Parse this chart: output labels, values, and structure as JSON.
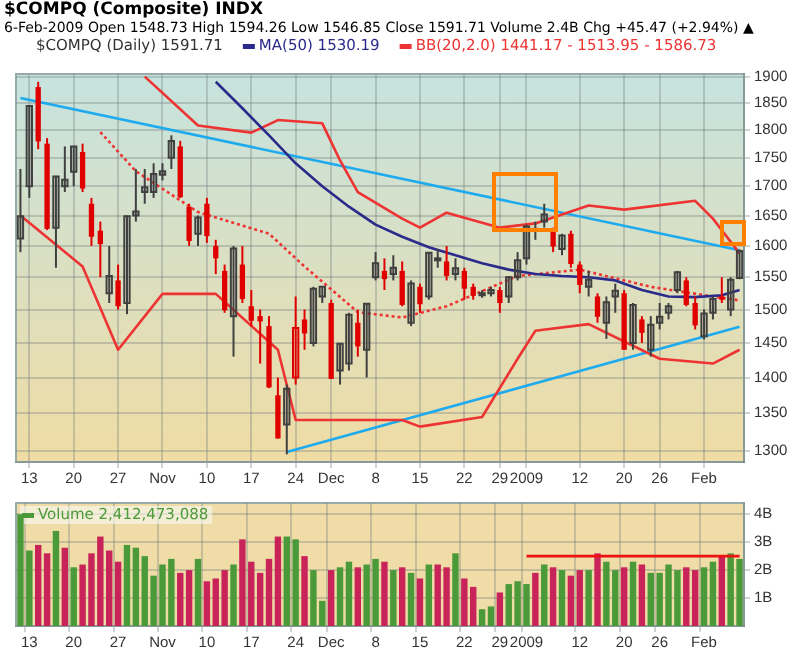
{
  "chart_data": [
    {
      "type": "candlestick",
      "title": "$COMPQ (Composite) INDX",
      "subtitle": "6-Feb-2009  Open 1548.73  High 1594.26  Low 1546.85  Close 1591.71  Volume 2.4B  Chg +45.47 (+2.94%) ▲",
      "categories": [
        null,
        "13",
        null,
        null,
        null,
        null,
        "20",
        null,
        null,
        null,
        null,
        "27",
        null,
        null,
        null,
        null,
        "Nov",
        null,
        null,
        null,
        null,
        "10",
        null,
        null,
        null,
        null,
        "17",
        null,
        null,
        null,
        null,
        "24",
        null,
        null,
        null,
        "Dec",
        null,
        null,
        null,
        null,
        "8",
        null,
        null,
        null,
        null,
        "15",
        null,
        null,
        null,
        null,
        "22",
        null,
        null,
        null,
        "29",
        null,
        null,
        "2009",
        null,
        null,
        null,
        null,
        null,
        "12",
        null,
        null,
        null,
        null,
        "20",
        null,
        null,
        null,
        "26",
        null,
        null,
        null,
        null,
        "Feb",
        null,
        null,
        null,
        null
      ],
      "log": true,
      "ylim": [
        1285,
        1905
      ],
      "yticks": [
        1300,
        1350,
        1400,
        1450,
        1500,
        1550,
        1600,
        1650,
        1700,
        1750,
        1800,
        1850,
        1900
      ],
      "grid": true,
      "legend": "top",
      "series": [
        {
          "name": "$COMPQ (Daily) 1591.71",
          "type": "candlestick",
          "colors": [
            "#404040",
            "#404040",
            "#e00000",
            "#e00000",
            "#404040",
            "#404040",
            "#404040",
            "#e00000",
            "#e00000",
            "#e00000",
            "#404040",
            "#e00000",
            "#404040",
            "#404040",
            "#404040",
            "#404040",
            "#404040",
            "#404040",
            "#e00000",
            "#e00000",
            "#404040",
            "#e00000",
            "#e00000",
            "#e00000",
            "#404040",
            "#e00000",
            "#e00000",
            "#e00000",
            "#e00000",
            "#e00000",
            "#404040",
            "#e00000",
            "#e00000",
            "#404040",
            "#404040",
            "#e00000",
            "#404040",
            "#404040",
            "#e00000",
            "#404040",
            "#404040",
            "#e00000",
            "#404040",
            "#e00000",
            "#404040",
            "#e00000",
            "#404040",
            "#404040",
            "#e00000",
            "#404040",
            "#e00000",
            "#e00000",
            "#404040",
            "#404040",
            "#e00000",
            "#404040",
            "#404040",
            "#404040",
            "#404040",
            "#404040",
            "#e00000",
            "#404040",
            "#e00000",
            "#e00000",
            "#404040",
            "#e00000",
            "#404040",
            "#404040",
            "#e00000",
            "#404040",
            "#e00000",
            "#404040",
            "#404040",
            "#404040",
            "#404040",
            "#e00000",
            "#e00000",
            "#404040",
            "#404040",
            "#e00000",
            "#404040",
            "#404040"
          ],
          "ohlc": [
            [
              1612,
              1730,
              1590,
              1649
            ],
            [
              1700,
              1844,
              1680,
              1844
            ],
            [
              1880,
              1890,
              1765,
              1779
            ],
            [
              1775,
              1785,
              1626,
              1628
            ],
            [
              1630,
              1718,
              1565,
              1717
            ],
            [
              1700,
              1770,
              1690,
              1711
            ],
            [
              1725,
              1771,
              1700,
              1770
            ],
            [
              1760,
              1775,
              1690,
              1696
            ],
            [
              1670,
              1680,
              1600,
              1615
            ],
            [
              1625,
              1640,
              1550,
              1603
            ],
            [
              1525,
              1600,
              1510,
              1552
            ],
            [
              1545,
              1570,
              1500,
              1505
            ],
            [
              1510,
              1650,
              1493,
              1649
            ],
            [
              1650,
              1730,
              1640,
              1657
            ],
            [
              1690,
              1730,
              1670,
              1698
            ],
            [
              1690,
              1740,
              1680,
              1721
            ],
            [
              1720,
              1740,
              1710,
              1726
            ],
            [
              1750,
              1790,
              1730,
              1780
            ],
            [
              1770,
              1780,
              1680,
              1681
            ],
            [
              1665,
              1670,
              1600,
              1608
            ],
            [
              1620,
              1650,
              1600,
              1647
            ],
            [
              1670,
              1680,
              1605,
              1616
            ],
            [
              1600,
              1610,
              1555,
              1580
            ],
            [
              1560,
              1570,
              1495,
              1499
            ],
            [
              1490,
              1600,
              1430,
              1596
            ],
            [
              1570,
              1600,
              1510,
              1516
            ],
            [
              1505,
              1530,
              1475,
              1483
            ],
            [
              1490,
              1500,
              1420,
              1482
            ],
            [
              1475,
              1490,
              1385,
              1386
            ],
            [
              1375,
              1400,
              1316,
              1316
            ],
            [
              1335,
              1390,
              1295,
              1384
            ],
            [
              1400,
              1520,
              1390,
              1472
            ],
            [
              1485,
              1500,
              1440,
              1464
            ],
            [
              1450,
              1535,
              1445,
              1532
            ],
            [
              1520,
              1535,
              1510,
              1535
            ],
            [
              1510,
              1515,
              1398,
              1398
            ],
            [
              1410,
              1450,
              1390,
              1449
            ],
            [
              1420,
              1495,
              1410,
              1492
            ],
            [
              1480,
              1500,
              1430,
              1445
            ],
            [
              1440,
              1510,
              1400,
              1509
            ],
            [
              1550,
              1590,
              1545,
              1572
            ],
            [
              1560,
              1580,
              1530,
              1547
            ],
            [
              1555,
              1585,
              1545,
              1565
            ],
            [
              1560,
              1575,
              1505,
              1507
            ],
            [
              1480,
              1545,
              1475,
              1540
            ],
            [
              1535,
              1540,
              1495,
              1508
            ],
            [
              1520,
              1590,
              1515,
              1589
            ],
            [
              1580,
              1595,
              1565,
              1580
            ],
            [
              1575,
              1600,
              1545,
              1552
            ],
            [
              1555,
              1580,
              1545,
              1564
            ],
            [
              1560,
              1565,
              1515,
              1532
            ],
            [
              1535,
              1540,
              1515,
              1521
            ],
            [
              1522,
              1530,
              1518,
              1525
            ],
            [
              1525,
              1535,
              1520,
              1530
            ],
            [
              1530,
              1535,
              1495,
              1510
            ],
            [
              1520,
              1552,
              1510,
              1550
            ],
            [
              1550,
              1590,
              1545,
              1577
            ],
            [
              1580,
              1635,
              1570,
              1632
            ],
            [
              1625,
              1640,
              1610,
              1628
            ],
            [
              1640,
              1670,
              1630,
              1652
            ],
            [
              1625,
              1630,
              1590,
              1599
            ],
            [
              1595,
              1620,
              1585,
              1617
            ],
            [
              1620,
              1625,
              1565,
              1571
            ],
            [
              1570,
              1575,
              1525,
              1538
            ],
            [
              1535,
              1560,
              1520,
              1546
            ],
            [
              1520,
              1525,
              1480,
              1489
            ],
            [
              1480,
              1520,
              1456,
              1511
            ],
            [
              1520,
              1540,
              1495,
              1529
            ],
            [
              1525,
              1530,
              1440,
              1440
            ],
            [
              1450,
              1510,
              1440,
              1507
            ],
            [
              1485,
              1490,
              1450,
              1465
            ],
            [
              1440,
              1490,
              1430,
              1477
            ],
            [
              1480,
              1510,
              1470,
              1489
            ],
            [
              1495,
              1510,
              1485,
              1505
            ],
            [
              1530,
              1560,
              1525,
              1558
            ],
            [
              1545,
              1550,
              1505,
              1507
            ],
            [
              1510,
              1520,
              1470,
              1476
            ],
            [
              1460,
              1500,
              1455,
              1494
            ],
            [
              1495,
              1520,
              1485,
              1516
            ],
            [
              1520,
              1550,
              1510,
              1515
            ],
            [
              1500,
              1550,
              1490,
              1546
            ],
            [
              1548.73,
              1594.26,
              1546.85,
              1591.71
            ]
          ]
        },
        {
          "name": "MA(50) 1530.19",
          "type": "line",
          "color": "#2a2a8a",
          "line_style": "solid",
          "values": [
            null,
            null,
            null,
            null,
            null,
            null,
            null,
            null,
            null,
            null,
            null,
            null,
            null,
            null,
            null,
            null,
            null,
            null,
            null,
            null,
            null,
            null,
            1890,
            null,
            null,
            1840,
            null,
            null,
            1790,
            null,
            null,
            1740,
            null,
            null,
            1700,
            null,
            null,
            1665,
            null,
            null,
            1635,
            null,
            null,
            1615,
            null,
            null,
            1598,
            null,
            null,
            1585,
            null,
            null,
            1572,
            null,
            null,
            1562,
            null,
            null,
            1555,
            null,
            null,
            1552,
            null,
            null,
            1550,
            null,
            null,
            1545,
            null,
            null,
            1530,
            null,
            null,
            1520,
            null,
            null,
            1519,
            null,
            null,
            1522,
            null,
            1530
          ]
        },
        {
          "name": "BB(20,2.0) 1441.17 - 1513.95 - 1586.73",
          "type": "line",
          "color": "#ee3333",
          "line_style": "solid",
          "values": [
            null,
            null,
            null,
            null,
            null,
            null,
            null,
            null,
            null,
            null,
            null,
            null,
            null,
            null,
            1900,
            null,
            null,
            null,
            null,
            null,
            1808,
            null,
            null,
            null,
            null,
            null,
            1795,
            null,
            null,
            1818,
            null,
            null,
            null,
            null,
            1812,
            null,
            1745,
            null,
            1690,
            null,
            null,
            null,
            null,
            1645,
            null,
            1630,
            null,
            null,
            1655,
            null,
            null,
            null,
            null,
            null,
            1630,
            null,
            null,
            null,
            1637,
            null,
            null,
            null,
            null,
            null,
            1667,
            null,
            null,
            null,
            1660,
            null,
            null,
            null,
            null,
            null,
            null,
            null,
            1675,
            null,
            1645,
            null,
            null,
            1588
          ]
        },
        {
          "type": "line",
          "color": "#ee3333",
          "line_style": "dotted",
          "values": [
            null,
            null,
            null,
            null,
            null,
            null,
            null,
            null,
            null,
            1796,
            null,
            null,
            null,
            1726,
            null,
            null,
            null,
            null,
            null,
            null,
            1656,
            null,
            null,
            null,
            null,
            null,
            null,
            null,
            1620,
            null,
            null,
            null,
            1567,
            null,
            null,
            null,
            null,
            null,
            1496,
            null,
            null,
            null,
            null,
            1488,
            null,
            null,
            null,
            null,
            1505,
            null,
            null,
            null,
            null,
            null,
            null,
            null,
            1552,
            null,
            null,
            null,
            null,
            null,
            null,
            1562,
            null,
            null,
            null,
            null,
            null,
            null,
            null,
            1535,
            null,
            null,
            null,
            null,
            null,
            null,
            1520,
            null,
            null,
            1514
          ]
        },
        {
          "type": "line",
          "color": "#ee3333",
          "line_style": "solid",
          "values": [
            1650,
            null,
            null,
            null,
            null,
            null,
            null,
            1567,
            null,
            null,
            null,
            1440,
            null,
            null,
            null,
            null,
            1524,
            null,
            null,
            null,
            null,
            null,
            1524,
            null,
            null,
            null,
            null,
            null,
            null,
            1440,
            null,
            1341,
            null,
            null,
            null,
            null,
            null,
            null,
            null,
            null,
            null,
            null,
            null,
            1341,
            null,
            1332,
            null,
            null,
            null,
            null,
            null,
            null,
            1345,
            null,
            null,
            null,
            1427,
            null,
            1468,
            null,
            null,
            null,
            null,
            null,
            1478,
            null,
            null,
            null,
            null,
            null,
            null,
            null,
            1427,
            null,
            null,
            null,
            null,
            null,
            1420,
            null,
            null,
            1440
          ]
        },
        {
          "type": "line",
          "color": "#1eaaee",
          "line_style": "solid",
          "values": [
            1859,
            null,
            null,
            null,
            null,
            null,
            null,
            null,
            null,
            null,
            null,
            null,
            null,
            null,
            null,
            null,
            null,
            null,
            null,
            null,
            null,
            null,
            null,
            null,
            null,
            null,
            null,
            null,
            null,
            null,
            null,
            null,
            null,
            null,
            null,
            null,
            null,
            null,
            null,
            null,
            null,
            null,
            null,
            null,
            null,
            null,
            null,
            null,
            null,
            null,
            null,
            null,
            null,
            null,
            null,
            null,
            null,
            null,
            null,
            null,
            null,
            null,
            null,
            null,
            null,
            null,
            null,
            null,
            null,
            null,
            null,
            null,
            null,
            null,
            null,
            null,
            null,
            null,
            null,
            null,
            null,
            1593
          ]
        },
        {
          "type": "line",
          "color": "#1eaaee",
          "line_style": "solid",
          "values": [
            null,
            null,
            null,
            null,
            null,
            null,
            null,
            null,
            null,
            null,
            null,
            null,
            null,
            null,
            null,
            null,
            null,
            null,
            null,
            null,
            null,
            null,
            null,
            null,
            null,
            null,
            null,
            null,
            null,
            null,
            1298,
            null,
            null,
            null,
            null,
            null,
            null,
            null,
            null,
            null,
            null,
            null,
            null,
            null,
            null,
            null,
            null,
            null,
            null,
            null,
            null,
            null,
            null,
            null,
            null,
            null,
            null,
            null,
            null,
            null,
            null,
            null,
            null,
            null,
            null,
            null,
            null,
            null,
            null,
            null,
            null,
            null,
            null,
            null,
            null,
            null,
            null,
            null,
            null,
            null,
            null,
            1474
          ]
        }
      ]
    },
    {
      "type": "bar",
      "categories": [
        null,
        "13",
        null,
        null,
        null,
        null,
        "20",
        null,
        null,
        null,
        null,
        "27",
        null,
        null,
        null,
        null,
        "Nov",
        null,
        null,
        null,
        null,
        "10",
        null,
        null,
        null,
        null,
        "17",
        null,
        null,
        null,
        null,
        "24",
        null,
        null,
        null,
        "Dec",
        null,
        null,
        null,
        null,
        "8",
        null,
        null,
        null,
        null,
        "15",
        null,
        null,
        null,
        null,
        "22",
        null,
        null,
        null,
        "29",
        null,
        null,
        "2009",
        null,
        null,
        null,
        null,
        null,
        "12",
        null,
        null,
        null,
        null,
        "20",
        null,
        null,
        null,
        "26",
        null,
        null,
        null,
        null,
        "Feb",
        null,
        null,
        null,
        null
      ],
      "ylim": [
        0,
        4.4
      ],
      "yticks": [
        {
          "value": 1,
          "label": "1B"
        },
        {
          "value": 2,
          "label": "2B"
        },
        {
          "value": 3,
          "label": "3B"
        },
        {
          "value": 4,
          "label": "4B"
        }
      ],
      "grid": true,
      "legend": "top left",
      "series": [
        {
          "name": "Volume 2,412,473,088",
          "type": "bar",
          "color": "#4a9a3a",
          "colors": [
            "#4a9a3a",
            "#4a9a3a",
            "#c8245a",
            "#c8245a",
            "#4a9a3a",
            "#c8245a",
            "#4a9a3a",
            "#c8245a",
            "#c8245a",
            "#c8245a",
            "#c8245a",
            "#c8245a",
            "#4a9a3a",
            "#4a9a3a",
            "#4a9a3a",
            "#4a9a3a",
            "#4a9a3a",
            "#4a9a3a",
            "#c8245a",
            "#c8245a",
            "#4a9a3a",
            "#c8245a",
            "#c8245a",
            "#c8245a",
            "#4a9a3a",
            "#c8245a",
            "#c8245a",
            "#c8245a",
            "#c8245a",
            "#c8245a",
            "#4a9a3a",
            "#4a9a3a",
            "#c8245a",
            "#4a9a3a",
            "#4a9a3a",
            "#c8245a",
            "#4a9a3a",
            "#4a9a3a",
            "#c8245a",
            "#4a9a3a",
            "#4a9a3a",
            "#c8245a",
            "#4a9a3a",
            "#c8245a",
            "#4a9a3a",
            "#c8245a",
            "#4a9a3a",
            "#c8245a",
            "#c8245a",
            "#4a9a3a",
            "#c8245a",
            "#c8245a",
            "#4a9a3a",
            "#4a9a3a",
            "#c8245a",
            "#4a9a3a",
            "#4a9a3a",
            "#4a9a3a",
            "#c8245a",
            "#4a9a3a",
            "#c8245a",
            "#4a9a3a",
            "#c8245a",
            "#c8245a",
            "#4a9a3a",
            "#c8245a",
            "#4a9a3a",
            "#4a9a3a",
            "#c8245a",
            "#4a9a3a",
            "#c8245a",
            "#4a9a3a",
            "#4a9a3a",
            "#4a9a3a",
            "#4a9a3a",
            "#c8245a",
            "#c8245a",
            "#4a9a3a",
            "#4a9a3a",
            "#c8245a",
            "#4a9a3a",
            "#4a9a3a"
          ],
          "values": [
            4.0,
            2.7,
            2.9,
            2.6,
            3.4,
            2.8,
            2.1,
            2.2,
            2.6,
            3.2,
            2.7,
            2.3,
            2.9,
            2.8,
            2.5,
            1.8,
            2.2,
            2.4,
            1.9,
            2.0,
            2.4,
            1.6,
            1.7,
            2.0,
            2.2,
            3.1,
            2.3,
            1.9,
            2.4,
            3.2,
            3.2,
            3.1,
            2.5,
            2.0,
            0.9,
            2.0,
            2.1,
            2.3,
            2.1,
            2.2,
            2.4,
            2.3,
            2.0,
            2.1,
            1.9,
            1.7,
            2.2,
            2.2,
            2.1,
            2.6,
            1.7,
            1.4,
            0.6,
            0.7,
            1.2,
            1.5,
            1.6,
            1.5,
            1.9,
            2.2,
            2.1,
            2.0,
            1.8,
            2.0,
            2.0,
            2.6,
            2.3,
            2.0,
            2.1,
            2.3,
            2.2,
            1.9,
            1.9,
            2.2,
            2.0,
            2.1,
            2.0,
            2.1,
            2.3,
            2.5,
            2.6,
            2.4
          ]
        },
        {
          "type": "line",
          "color": "#ee1111",
          "line_style": "solid",
          "values": [
            null,
            null,
            null,
            null,
            null,
            null,
            null,
            null,
            null,
            null,
            null,
            null,
            null,
            null,
            null,
            null,
            null,
            null,
            null,
            null,
            null,
            null,
            null,
            null,
            null,
            null,
            null,
            null,
            null,
            null,
            null,
            null,
            null,
            null,
            null,
            null,
            null,
            null,
            null,
            null,
            null,
            null,
            null,
            null,
            null,
            null,
            null,
            null,
            null,
            null,
            null,
            null,
            null,
            null,
            null,
            null,
            null,
            2.5,
            2.5,
            2.5,
            2.5,
            2.5,
            2.5,
            2.5,
            2.5,
            2.5,
            2.5,
            2.5,
            2.5,
            2.5,
            2.5,
            2.5,
            2.5,
            2.5,
            2.5,
            2.5,
            2.5,
            2.5,
            2.5,
            2.5,
            2.5,
            2.5
          ]
        }
      ]
    }
  ]
}
